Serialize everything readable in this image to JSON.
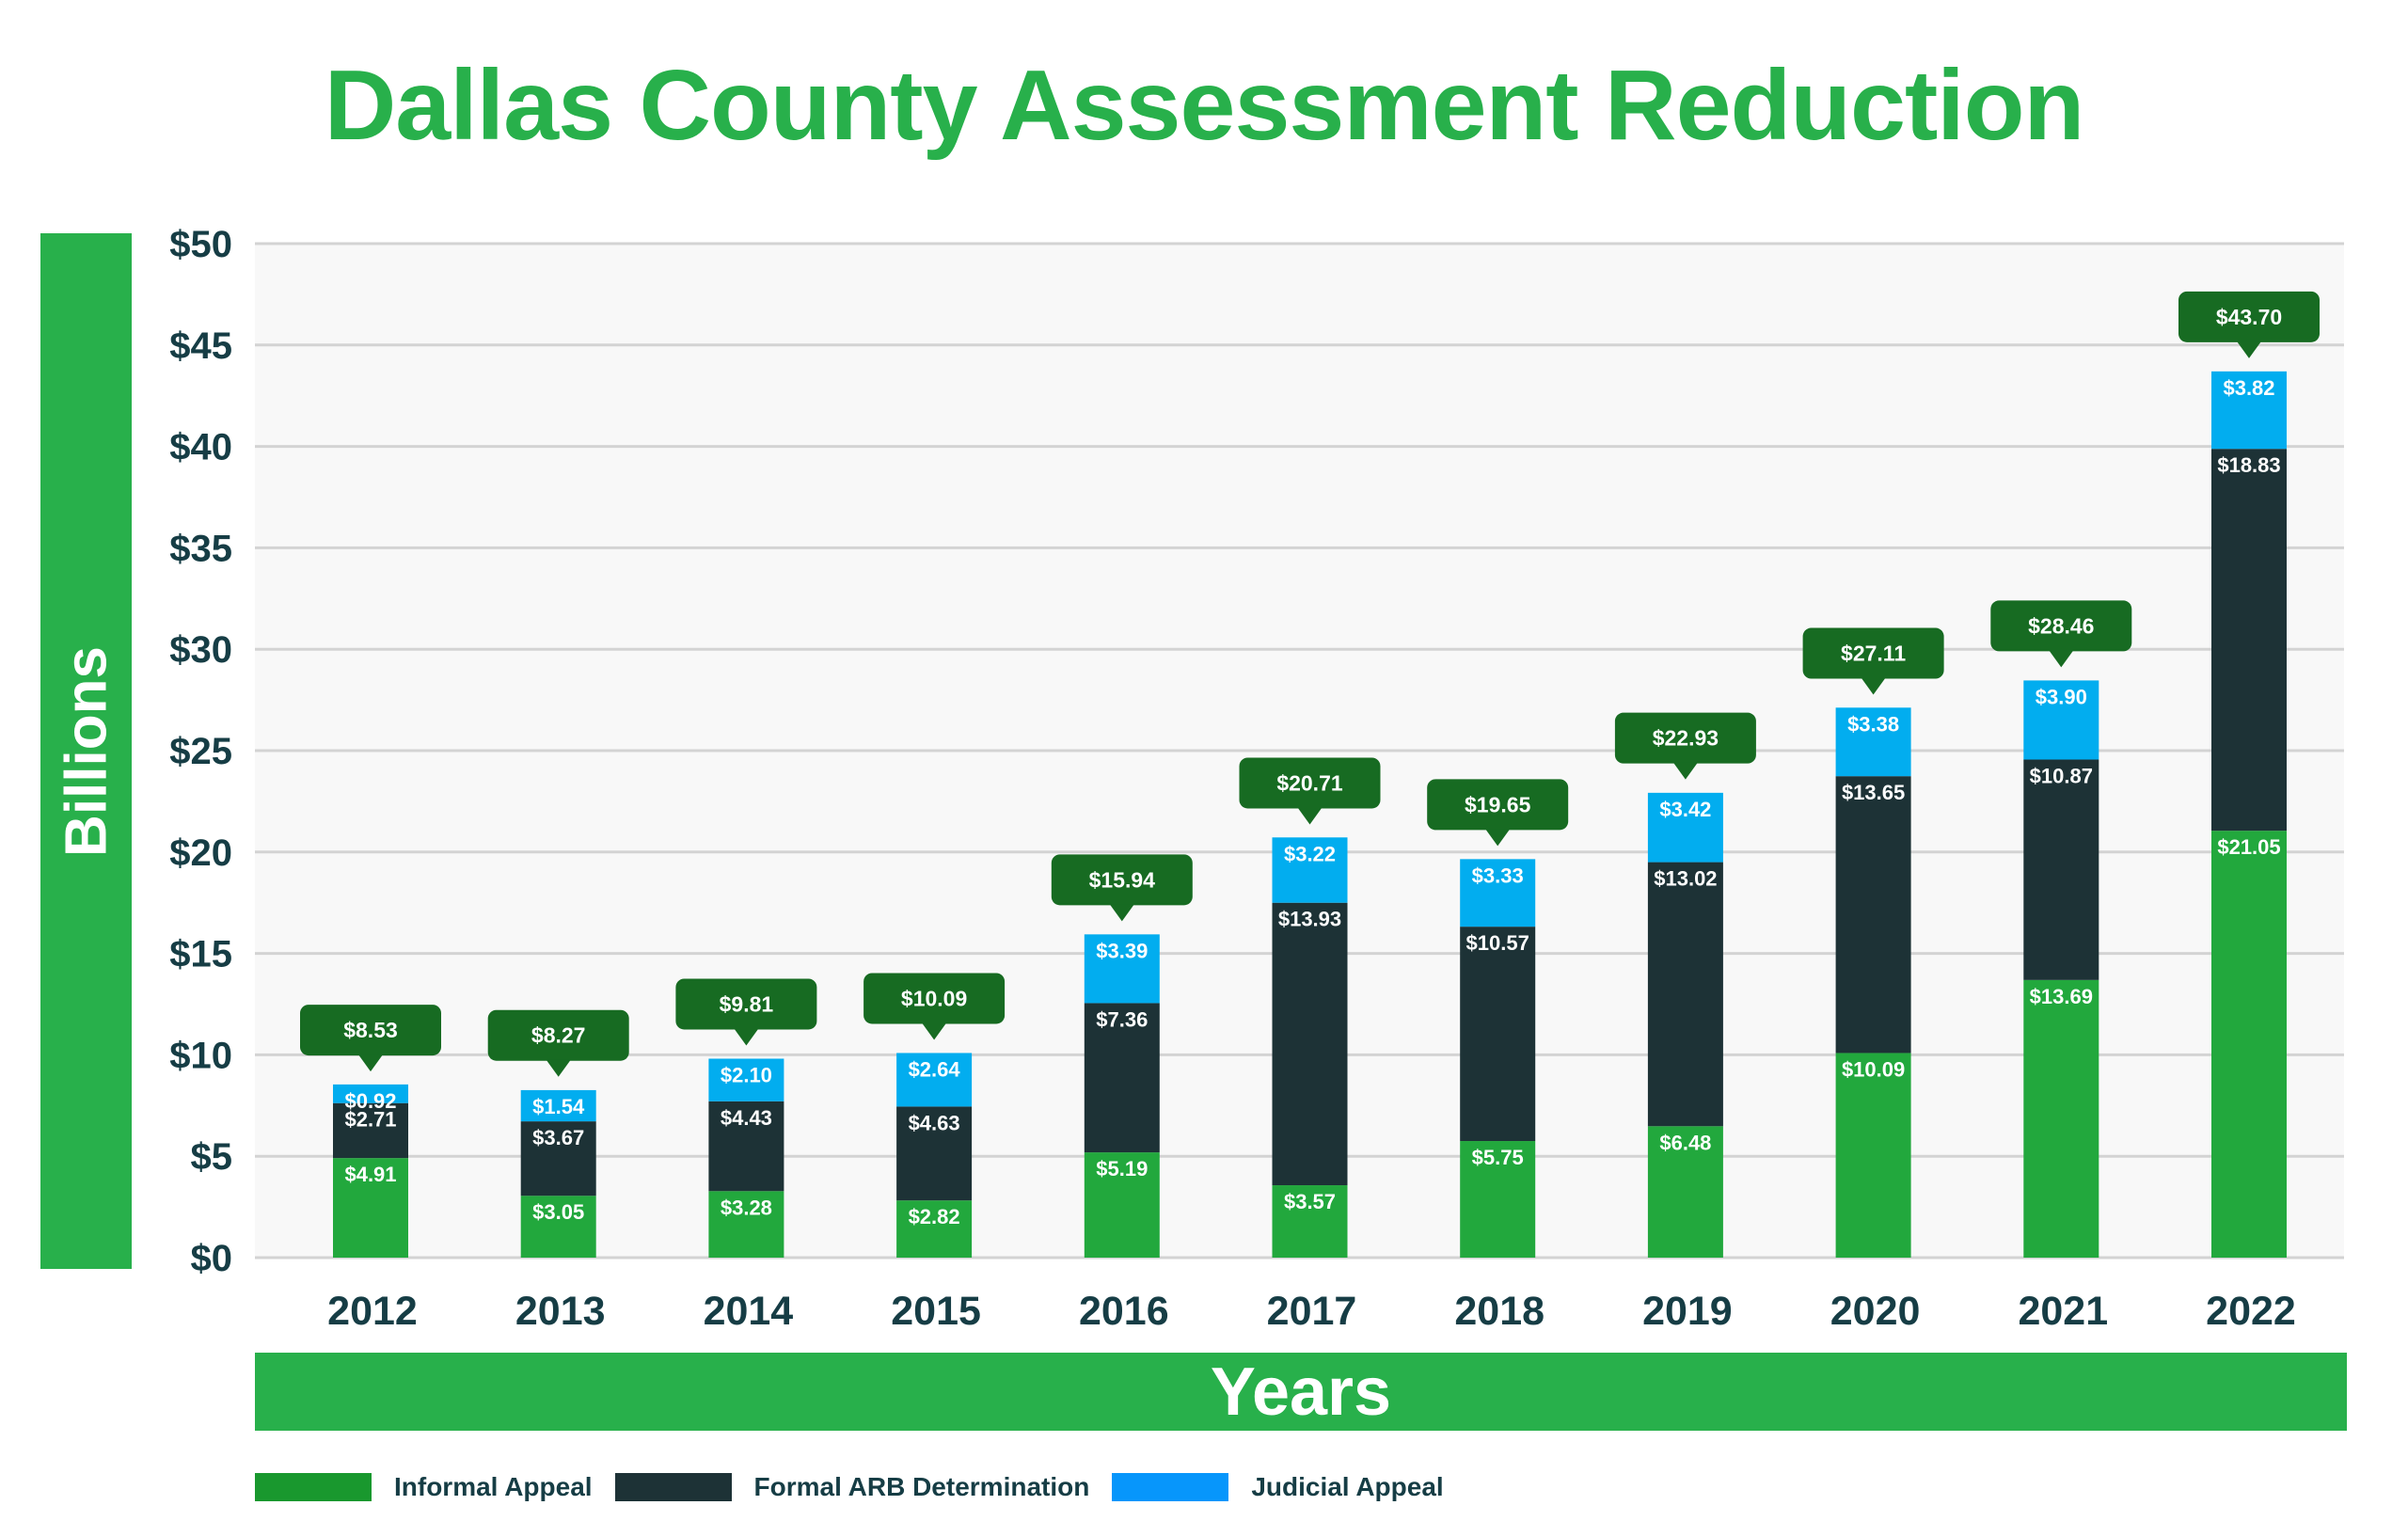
{
  "chart_data": {
    "type": "bar",
    "stacked": true,
    "title": "Dallas County Assessment Reduction",
    "xlabel": "Years",
    "ylabel": "Billions",
    "ylim": [
      0,
      50
    ],
    "yticks": [
      0,
      5,
      10,
      15,
      20,
      25,
      30,
      35,
      40,
      45,
      50
    ],
    "ytick_labels": [
      "$0",
      "$5",
      "$10",
      "$15",
      "$20",
      "$25",
      "$30",
      "$35",
      "$40",
      "$45",
      "$50"
    ],
    "grid": true,
    "legend_position": "bottom-left",
    "categories": [
      "2012",
      "2013",
      "2014",
      "2015",
      "2016",
      "2017",
      "2018",
      "2019",
      "2020",
      "2021",
      "2022"
    ],
    "series": [
      {
        "name": "Informal Appeal",
        "color": "#22a83d",
        "legend_color": "#19982e",
        "values": [
          4.91,
          3.05,
          3.28,
          2.82,
          5.19,
          3.57,
          5.75,
          6.48,
          10.09,
          13.69,
          21.05
        ],
        "labels": [
          "$4.91",
          "$3.05",
          "$3.28",
          "$2.82",
          "$5.19",
          "$3.57",
          "$5.75",
          "$6.48",
          "$10.09",
          "$13.69",
          "$21.05"
        ]
      },
      {
        "name": "Formal ARB Determination",
        "color": "#1d3236",
        "legend_color": "#1d3236",
        "values": [
          2.71,
          3.67,
          4.43,
          4.63,
          7.36,
          13.93,
          10.57,
          13.02,
          13.65,
          10.87,
          18.83
        ],
        "labels": [
          "$2.71",
          "$3.67",
          "$4.43",
          "$4.63",
          "$7.36",
          "$13.93",
          "$10.57",
          "$13.02",
          "$13.65",
          "$10.87",
          "$18.83"
        ]
      },
      {
        "name": "Judicial Appeal",
        "color": "#02adef",
        "legend_color": "#0796fb",
        "values": [
          0.92,
          1.54,
          2.1,
          2.64,
          3.39,
          3.22,
          3.33,
          3.42,
          3.38,
          3.9,
          3.82
        ],
        "labels": [
          "$0.92",
          "$1.54",
          "$2.10",
          "$2.64",
          "$3.39",
          "$3.22",
          "$3.33",
          "$3.42",
          "$3.38",
          "$3.90",
          "$3.82"
        ]
      }
    ],
    "totals": [
      8.53,
      8.27,
      9.81,
      10.09,
      15.94,
      20.71,
      19.65,
      22.93,
      27.11,
      28.46,
      43.7
    ],
    "total_labels": [
      "$8.53",
      "$8.27",
      "$9.81",
      "$10.09",
      "$15.94",
      "$20.71",
      "$19.65",
      "$22.93",
      "$27.11",
      "$28.46",
      "$43.70"
    ],
    "total_label_color": "#176b22"
  },
  "colors": {
    "brand_green": "#28b04b",
    "axis_text": "#163d45",
    "plot_background": "#f8f8f8",
    "gridline": "#d3d3d3"
  }
}
